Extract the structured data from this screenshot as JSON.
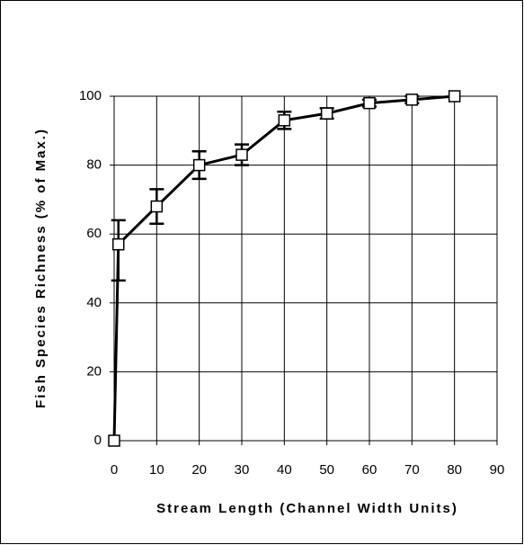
{
  "chart_data": {
    "type": "line",
    "xlabel": "Stream Length (Channel Width Units)",
    "ylabel": "Fish Species Richness (% of Max.)",
    "x": [
      0,
      1,
      10,
      20,
      30,
      40,
      50,
      60,
      70,
      80
    ],
    "series": [
      {
        "name": "Richness",
        "color": "#000000",
        "values": [
          0,
          57,
          68,
          80,
          83,
          93,
          95,
          98,
          99,
          100
        ],
        "errors_plus": [
          0,
          7,
          5,
          4,
          3,
          2.5,
          1.5,
          1,
          1,
          0
        ],
        "errors_minus": [
          0,
          10.5,
          5,
          4,
          3,
          2.5,
          1.5,
          1,
          1,
          0
        ]
      }
    ],
    "xlim": [
      0,
      90
    ],
    "xticks": [
      0,
      10,
      20,
      30,
      40,
      50,
      60,
      70,
      80,
      90
    ],
    "ylim": [
      0,
      100
    ],
    "yticks": [
      0,
      20,
      40,
      60,
      80,
      100
    ],
    "grid": true
  }
}
